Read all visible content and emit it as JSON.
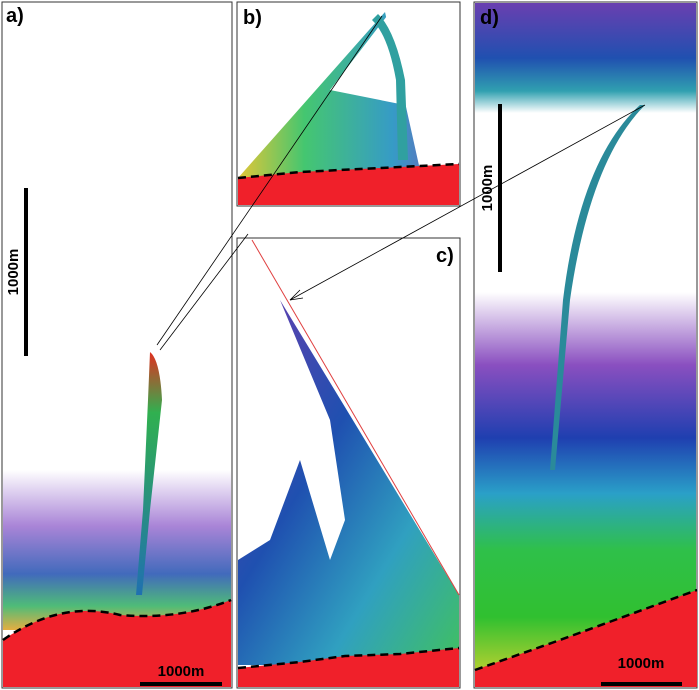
{
  "panels": [
    {
      "label": "a)",
      "scale_bars": [
        "1000m",
        "1000m"
      ]
    },
    {
      "label": "b)"
    },
    {
      "label": "c)"
    },
    {
      "label": "d)",
      "scale_bars": [
        "1000m",
        "1000m"
      ]
    }
  ]
}
